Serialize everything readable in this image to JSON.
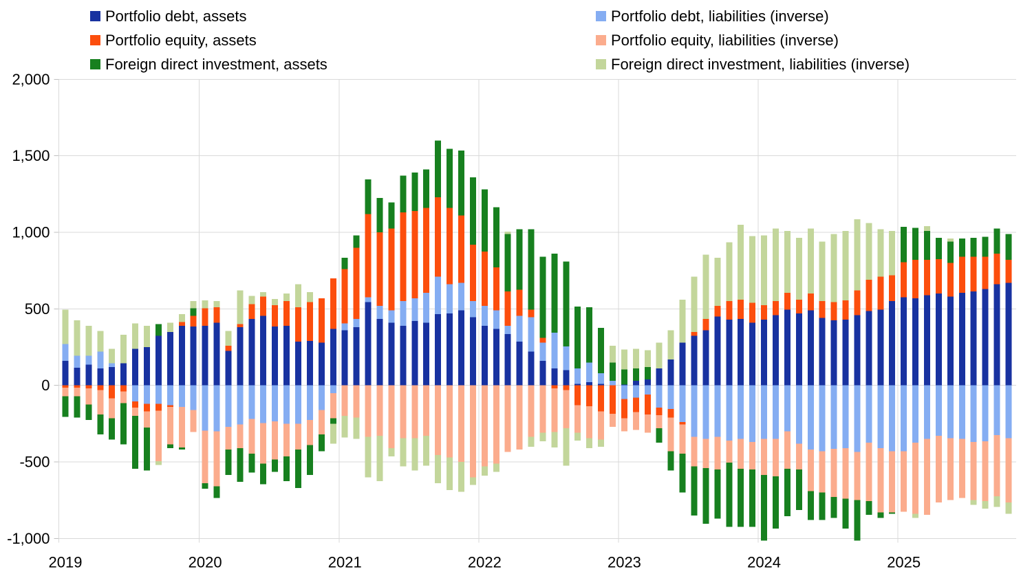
{
  "chart_data": {
    "type": "bar",
    "stacked": true,
    "title": "",
    "xlabel": "",
    "ylabel": "",
    "grid": true,
    "legend_position": "top",
    "ylim": [
      -1000,
      2000
    ],
    "y_ticks": [
      {
        "value": 2000,
        "label": "2,000"
      },
      {
        "value": 1500,
        "label": "1,500"
      },
      {
        "value": 1000,
        "label": "1,000"
      },
      {
        "value": 500,
        "label": "500"
      },
      {
        "value": 0,
        "label": "0"
      },
      {
        "value": -500,
        "label": "-500"
      },
      {
        "value": -1000,
        "label": "-1,000"
      }
    ],
    "x_tick_years": [
      "2019",
      "2020",
      "2021",
      "2022",
      "2023",
      "2024",
      "2025"
    ],
    "x_months": [
      "2019-01",
      "2019-02",
      "2019-03",
      "2019-04",
      "2019-05",
      "2019-06",
      "2019-07",
      "2019-08",
      "2019-09",
      "2019-10",
      "2019-11",
      "2019-12",
      "2020-01",
      "2020-02",
      "2020-03",
      "2020-04",
      "2020-05",
      "2020-06",
      "2020-07",
      "2020-08",
      "2020-09",
      "2020-10",
      "2020-11",
      "2020-12",
      "2021-01",
      "2021-02",
      "2021-03",
      "2021-04",
      "2021-05",
      "2021-06",
      "2021-07",
      "2021-08",
      "2021-09",
      "2021-10",
      "2021-11",
      "2021-12",
      "2022-01",
      "2022-02",
      "2022-03",
      "2022-04",
      "2022-05",
      "2022-06",
      "2022-07",
      "2022-08",
      "2022-09",
      "2022-10",
      "2022-11",
      "2022-12",
      "2023-01",
      "2023-02",
      "2023-03",
      "2023-04",
      "2023-05",
      "2023-06",
      "2023-07",
      "2023-08",
      "2023-09",
      "2023-10",
      "2023-11",
      "2023-12",
      "2024-01",
      "2024-02",
      "2024-03",
      "2024-04",
      "2024-05",
      "2024-06",
      "2024-07",
      "2024-08",
      "2024-09",
      "2024-10",
      "2024-11",
      "2024-12",
      "2025-01",
      "2025-02",
      "2025-03",
      "2025-04",
      "2025-05",
      "2025-06",
      "2025-07",
      "2025-08",
      "2025-09",
      "2025-10"
    ],
    "series": [
      {
        "name": "Portfolio debt, assets",
        "color": "#1832A0",
        "values": [
          160,
          115,
          135,
          110,
          120,
          145,
          240,
          250,
          325,
          350,
          390,
          385,
          390,
          410,
          225,
          380,
          435,
          455,
          385,
          390,
          285,
          290,
          280,
          370,
          360,
          380,
          545,
          435,
          410,
          390,
          420,
          410,
          465,
          470,
          490,
          445,
          390,
          370,
          335,
          285,
          220,
          160,
          110,
          100,
          10,
          20,
          10,
          0,
          5,
          30,
          40,
          110,
          170,
          280,
          325,
          360,
          450,
          430,
          435,
          410,
          430,
          460,
          495,
          470,
          490,
          440,
          425,
          430,
          460,
          485,
          495,
          550,
          575,
          570,
          590,
          600,
          580,
          605,
          615,
          630,
          660,
          670
        ]
      },
      {
        "name": "Portfolio debt, liabilities (inverse)",
        "color": "#85ADF2",
        "values": [
          110,
          80,
          60,
          110,
          25,
          0,
          -105,
          -120,
          -120,
          -130,
          -140,
          -160,
          -295,
          -300,
          -270,
          -255,
          -220,
          -245,
          -235,
          -250,
          -250,
          -225,
          -160,
          -50,
          45,
          55,
          30,
          85,
          80,
          160,
          150,
          195,
          245,
          190,
          180,
          105,
          130,
          120,
          55,
          170,
          225,
          120,
          235,
          155,
          100,
          130,
          70,
          30,
          -90,
          -80,
          -60,
          -145,
          -155,
          -240,
          -335,
          -350,
          -335,
          -360,
          -350,
          -370,
          -350,
          -350,
          -300,
          -380,
          -420,
          -430,
          -415,
          -410,
          -435,
          -375,
          -410,
          -430,
          -430,
          -375,
          -350,
          -330,
          -345,
          -350,
          -370,
          -365,
          -325,
          -345
        ]
      },
      {
        "name": "Portfolio equity, assets",
        "color": "#FC4E0D",
        "values": [
          -15,
          -15,
          -20,
          -30,
          -85,
          -40,
          -40,
          -50,
          -45,
          -10,
          25,
          70,
          115,
          100,
          35,
          20,
          95,
          125,
          140,
          160,
          225,
          255,
          290,
          330,
          355,
          465,
          545,
          480,
          535,
          580,
          570,
          555,
          520,
          500,
          440,
          370,
          355,
          280,
          225,
          170,
          50,
          30,
          -20,
          -30,
          -130,
          -135,
          -170,
          -185,
          -125,
          -95,
          -130,
          -50,
          -55,
          -15,
          25,
          75,
          70,
          120,
          125,
          130,
          95,
          90,
          110,
          90,
          110,
          110,
          120,
          125,
          160,
          205,
          215,
          170,
          230,
          250,
          230,
          225,
          220,
          235,
          225,
          210,
          200,
          150
        ]
      },
      {
        "name": "Portfolio equity, liabilities (inverse)",
        "color": "#FBAC8D",
        "values": [
          -55,
          -55,
          -105,
          -160,
          -130,
          -75,
          -55,
          -105,
          -330,
          -245,
          -265,
          -145,
          -345,
          -360,
          -150,
          -155,
          -225,
          -265,
          -250,
          -215,
          -170,
          -165,
          -160,
          -165,
          -200,
          -210,
          -335,
          -330,
          -410,
          -345,
          -345,
          -330,
          -455,
          -470,
          -500,
          -600,
          -530,
          -510,
          -435,
          -420,
          -335,
          -310,
          -285,
          -250,
          -180,
          -210,
          -185,
          -85,
          -85,
          -115,
          -120,
          -85,
          -220,
          -190,
          -195,
          -190,
          -215,
          -145,
          -195,
          -180,
          -235,
          -245,
          -245,
          -170,
          -270,
          -270,
          -315,
          -330,
          -315,
          -380,
          -420,
          -400,
          -395,
          -465,
          -495,
          -435,
          -405,
          -385,
          -380,
          -390,
          -400,
          -420
        ]
      },
      {
        "name": "Foreign direct investment, assets",
        "color": "#17801F",
        "values": [
          -135,
          -140,
          -100,
          -130,
          -140,
          -270,
          -345,
          -280,
          75,
          -25,
          -15,
          50,
          -35,
          -75,
          -165,
          -220,
          -125,
          -135,
          -80,
          -160,
          -250,
          -195,
          -110,
          -35,
          75,
          80,
          225,
          225,
          170,
          240,
          250,
          250,
          370,
          385,
          425,
          440,
          405,
          395,
          375,
          395,
          525,
          530,
          515,
          555,
          405,
          360,
          295,
          120,
          100,
          80,
          80,
          -95,
          -125,
          -255,
          -320,
          -365,
          -320,
          -420,
          -380,
          -375,
          -430,
          -340,
          -310,
          -265,
          -190,
          -180,
          -135,
          -195,
          -265,
          -90,
          -35,
          -10,
          230,
          210,
          190,
          140,
          140,
          120,
          125,
          130,
          165,
          170
        ]
      },
      {
        "name": "Foreign direct investment, liabilities (inverse)",
        "color": "#C3D69B",
        "values": [
          225,
          230,
          195,
          135,
          95,
          185,
          165,
          140,
          -25,
          60,
          50,
          45,
          50,
          40,
          95,
          220,
          55,
          30,
          40,
          50,
          150,
          65,
          0,
          -130,
          -140,
          -140,
          -265,
          -295,
          -55,
          -185,
          -210,
          -195,
          -185,
          -215,
          -195,
          -50,
          -60,
          -55,
          15,
          0,
          -65,
          -55,
          -100,
          -245,
          -50,
          -65,
          -45,
          110,
          130,
          130,
          110,
          170,
          190,
          280,
          360,
          420,
          315,
          385,
          490,
          435,
          455,
          475,
          405,
          405,
          425,
          390,
          445,
          455,
          465,
          370,
          310,
          290,
          0,
          -25,
          30,
          0,
          20,
          0,
          -30,
          -50,
          -70,
          -75
        ]
      }
    ],
    "style": {
      "gridline_color": "#D9D9D9",
      "axis_text_color": "#000000",
      "background": "#FFFFFF"
    }
  },
  "legend": {
    "assets_column_series": [
      0,
      2,
      4
    ],
    "liabilities_column_series": [
      1,
      3,
      5
    ]
  }
}
